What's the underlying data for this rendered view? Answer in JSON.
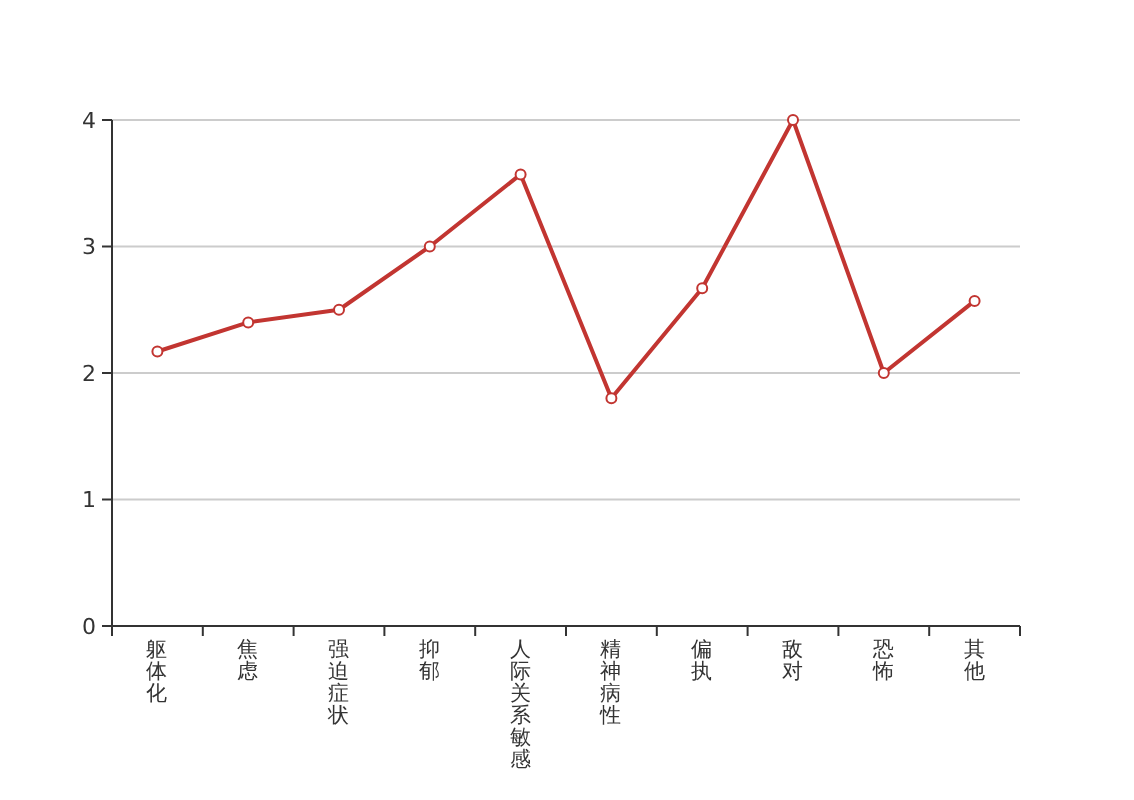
{
  "chart_data": {
    "type": "line",
    "categories": [
      "躯体化",
      "焦虑",
      "强迫症状",
      "抑郁",
      "人际关系敏感",
      "精神病性",
      "偏执",
      "敌对",
      "恐怖",
      "其他"
    ],
    "series": [
      {
        "color": "#c23531",
        "values": [
          2.17,
          2.4,
          2.5,
          3.0,
          3.57,
          1.8,
          2.67,
          4.0,
          2.0,
          2.57
        ]
      }
    ],
    "ylim": [
      0,
      4
    ],
    "yticks": [
      0,
      1,
      2,
      3,
      4
    ],
    "grid": "y",
    "marker": "circle"
  }
}
